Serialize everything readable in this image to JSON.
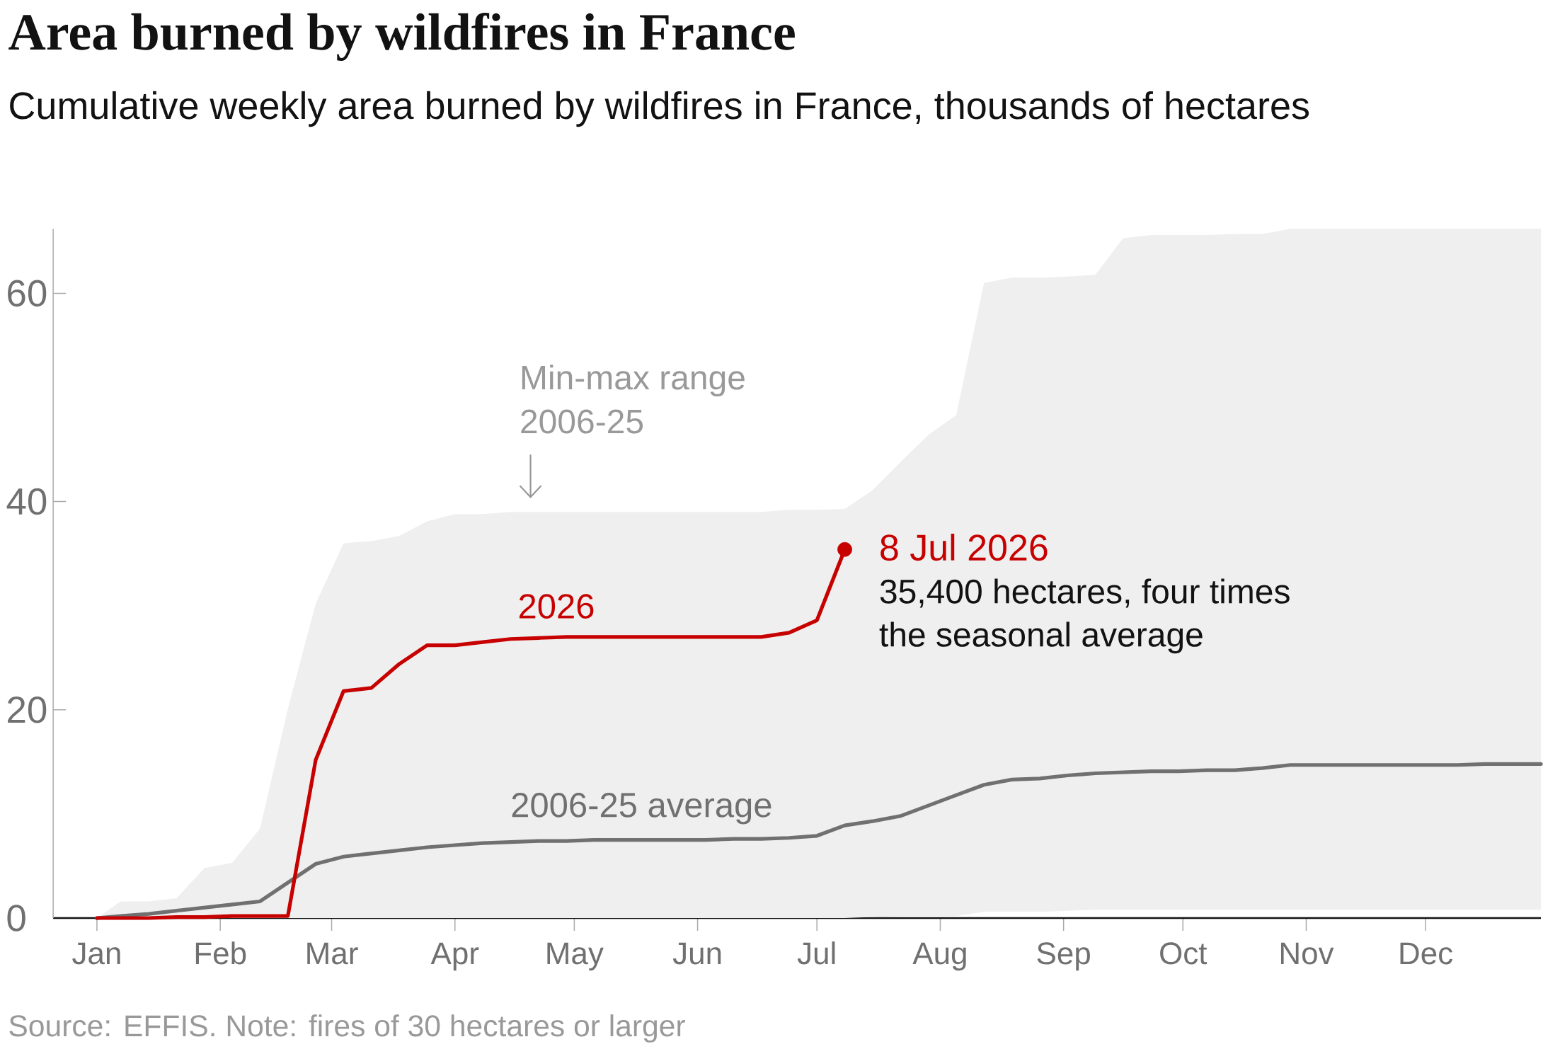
{
  "chart_data": {
    "type": "line",
    "title": "Area burned by wildfires in France",
    "subtitle": "Cumulative weekly area burned by wildfires in France, thousands of hectares",
    "xlim": [
      "2025-12-21",
      "2026-12-30"
    ],
    "xticks": [
      {
        "value": "2026-01-01",
        "label": "Jan"
      },
      {
        "value": "2026-02-01",
        "label": "Feb"
      },
      {
        "value": "2026-03-01",
        "label": "Mar"
      },
      {
        "value": "2026-04-01",
        "label": "Apr"
      },
      {
        "value": "2026-05-01",
        "label": "May"
      },
      {
        "value": "2026-06-01",
        "label": "Jun"
      },
      {
        "value": "2026-07-01",
        "label": "Jul"
      },
      {
        "value": "2026-08-01",
        "label": "Aug"
      },
      {
        "value": "2026-09-01",
        "label": "Sep"
      },
      {
        "value": "2026-10-01",
        "label": "Oct"
      },
      {
        "value": "2026-11-01",
        "label": "Nov"
      },
      {
        "value": "2026-12-01",
        "label": "Dec"
      }
    ],
    "ylim": [
      0,
      66.2
    ],
    "yticks": [
      0,
      20,
      40,
      60
    ],
    "x": [
      "2026-01-01",
      "2026-01-07",
      "2026-01-14",
      "2026-01-21",
      "2026-01-28",
      "2026-02-04",
      "2026-02-11",
      "2026-02-18",
      "2026-02-25",
      "2026-03-04",
      "2026-03-11",
      "2026-03-18",
      "2026-03-25",
      "2026-04-01",
      "2026-04-08",
      "2026-04-15",
      "2026-04-22",
      "2026-04-29",
      "2026-05-06",
      "2026-05-13",
      "2026-05-20",
      "2026-05-27",
      "2026-06-03",
      "2026-06-10",
      "2026-06-17",
      "2026-06-24",
      "2026-07-01",
      "2026-07-08",
      "2026-07-15",
      "2026-07-22",
      "2026-07-29",
      "2026-08-05",
      "2026-08-12",
      "2026-08-19",
      "2026-08-26",
      "2026-09-02",
      "2026-09-09",
      "2026-09-16",
      "2026-09-23",
      "2026-09-30",
      "2026-10-07",
      "2026-10-14",
      "2026-10-21",
      "2026-10-28",
      "2026-11-04",
      "2026-11-11",
      "2026-11-18",
      "2026-11-25",
      "2026-12-02",
      "2026-12-09",
      "2026-12-16",
      "2026-12-23",
      "2026-12-30"
    ],
    "series": [
      {
        "name": "2006-25 average",
        "color": "#707070",
        "values": [
          0,
          0.2,
          0.4,
          0.7,
          1.0,
          1.3,
          1.6,
          3.4,
          5.2,
          5.9,
          6.2,
          6.5,
          6.8,
          7.0,
          7.2,
          7.3,
          7.4,
          7.4,
          7.5,
          7.5,
          7.5,
          7.5,
          7.5,
          7.6,
          7.6,
          7.7,
          7.9,
          8.9,
          9.3,
          9.8,
          10.8,
          11.8,
          12.8,
          13.3,
          13.4,
          13.7,
          13.9,
          14.0,
          14.1,
          14.1,
          14.2,
          14.2,
          14.4,
          14.7,
          14.7,
          14.7,
          14.7,
          14.7,
          14.7,
          14.7,
          14.8,
          14.8,
          14.8
        ],
        "lower": [
          0,
          0,
          0,
          0,
          0,
          0,
          0,
          0,
          0,
          0,
          0,
          0,
          0,
          0,
          0,
          0,
          0,
          0,
          0,
          0,
          0,
          0,
          0,
          0,
          0,
          0,
          0,
          0,
          0.1,
          0.2,
          0.2,
          0.2,
          0.6,
          0.6,
          0.6,
          0.7,
          0.8,
          0.8,
          0.8,
          0.8,
          0.8,
          0.8,
          0.8,
          0.8,
          0.8,
          0.8,
          0.8,
          0.8,
          0.8,
          0.8,
          0.8,
          0.8,
          0.8
        ],
        "upper": [
          0,
          1.6,
          1.6,
          1.9,
          4.8,
          5.3,
          8.6,
          20.1,
          30.2,
          36.0,
          36.2,
          36.7,
          38.1,
          38.8,
          38.8,
          39.0,
          39.0,
          39.0,
          39.0,
          39.0,
          39.0,
          39.0,
          39.0,
          39.0,
          39.0,
          39.2,
          39.2,
          39.3,
          41.1,
          43.8,
          46.4,
          48.3,
          61.0,
          61.5,
          61.5,
          61.6,
          61.8,
          65.3,
          65.6,
          65.6,
          65.6,
          65.7,
          65.7,
          66.2,
          66.2,
          66.2,
          66.2,
          66.2,
          66.2,
          66.2,
          66.2,
          66.2,
          66.2
        ]
      },
      {
        "name": "2026",
        "color": "#c70000",
        "x": [
          "2026-01-01",
          "2026-01-07",
          "2026-01-14",
          "2026-01-21",
          "2026-01-28",
          "2026-02-04",
          "2026-02-11",
          "2026-02-18",
          "2026-02-25",
          "2026-03-04",
          "2026-03-11",
          "2026-03-18",
          "2026-03-25",
          "2026-04-01",
          "2026-04-08",
          "2026-04-15",
          "2026-04-22",
          "2026-04-29",
          "2026-05-06",
          "2026-05-13",
          "2026-05-20",
          "2026-05-27",
          "2026-06-03",
          "2026-06-10",
          "2026-06-17",
          "2026-06-24",
          "2026-07-01",
          "2026-07-08"
        ],
        "values": [
          0,
          0,
          0,
          0.1,
          0.1,
          0.2,
          0.2,
          0.2,
          15.2,
          21.8,
          22.1,
          24.4,
          26.2,
          26.2,
          26.5,
          26.8,
          26.9,
          27.0,
          27.0,
          27.0,
          27.0,
          27.0,
          27.0,
          27.0,
          27.0,
          27.4,
          28.6,
          35.4
        ]
      },
      {
        "type": "scatter",
        "color": "#c70000",
        "x": [
          "2026-07-08"
        ],
        "values": [
          35.4
        ]
      }
    ],
    "annotations": [
      {
        "text": "Min-max range 2006-25",
        "x": "2026-04-20",
        "y": 39.0
      },
      {
        "text": "8 Jul 2026",
        "x": "2026-07-08",
        "y": 35.4
      },
      {
        "text": "35,400 hectares, four times the seasonal average",
        "x": "2026-07-08",
        "y": 35.4
      },
      "Source: EFFIS. Note: fires of 30 hectares or larger"
    ]
  }
}
